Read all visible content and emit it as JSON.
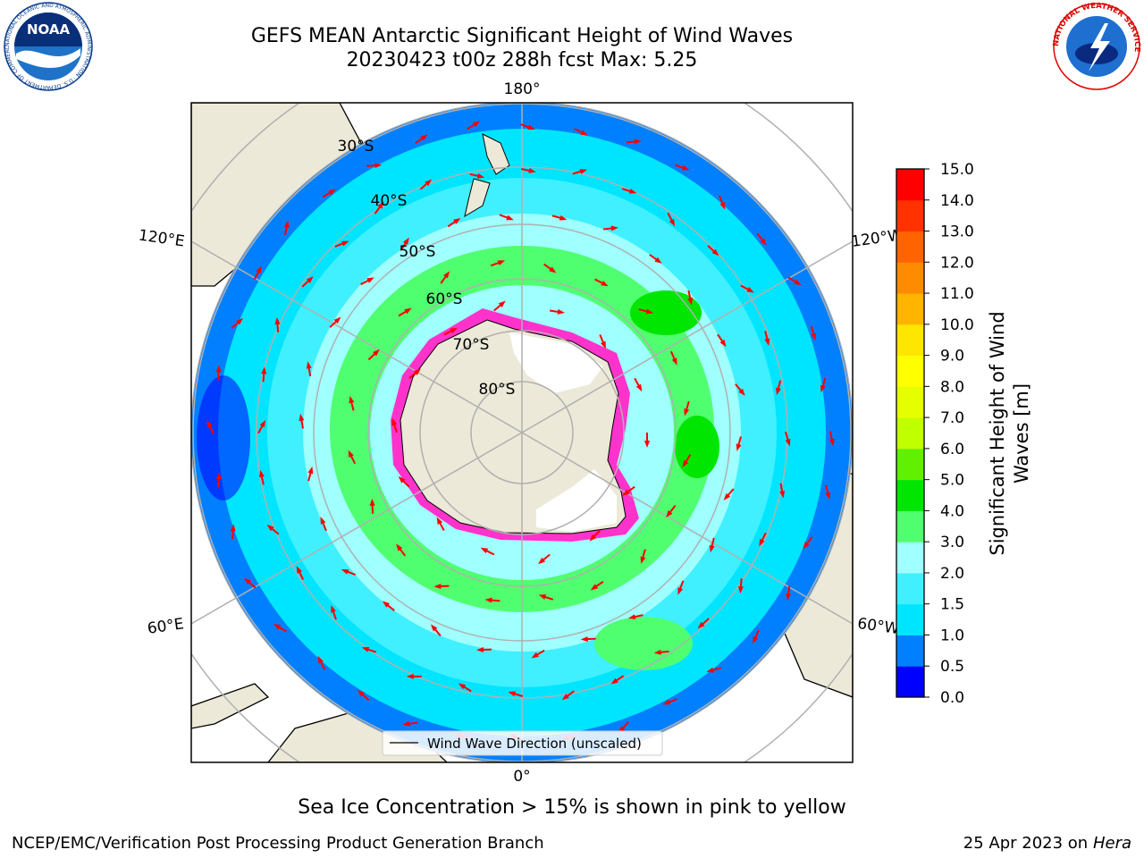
{
  "header": {
    "title_line1": "GEFS MEAN Antarctic Significant Height of Wind Waves",
    "title_line2": "20230423 t00z 288h fcst   Max: 5.25",
    "left_logo_text": "NOAA",
    "left_logo_ring_text": "NATIONAL OCEANIC AND ATMOSPHERIC ADMINISTRATION · U.S. DEPARTMENT OF COMMERCE",
    "right_logo_ring_text": "NATIONAL WEATHER SERVICE"
  },
  "map": {
    "projection": "south-polar-stereographic",
    "meridian_labels": {
      "top": "180°",
      "bottom": "0°",
      "upper_left": "120°E",
      "upper_right": "120°W",
      "lower_left": "60°E",
      "lower_right": "60°W"
    },
    "latitude_labels": [
      "30°S",
      "40°S",
      "50°S",
      "60°S",
      "70°S",
      "80°S"
    ],
    "legend_label": "Wind Wave Direction (unscaled)",
    "colors": {
      "land": "#ede9d8",
      "ice_shelf": "#ffffff",
      "arrow": "#ff0000",
      "sea_ice": "#ff33cc",
      "grid": "#b0b0b0"
    }
  },
  "colorbar": {
    "label_line1": "Significant Height of Wind",
    "label_line2": "Waves [m]",
    "ticks": [
      "0.0",
      "0.5",
      "1.0",
      "1.5",
      "2.0",
      "3.0",
      "4.0",
      "5.0",
      "6.0",
      "7.0",
      "8.0",
      "9.0",
      "10.0",
      "11.0",
      "12.0",
      "13.0",
      "14.0",
      "15.0"
    ],
    "colors": [
      "#0000ff",
      "#0080ff",
      "#00e5ff",
      "#40f0ff",
      "#a0ffff",
      "#50ff70",
      "#00e600",
      "#60f000",
      "#c0ff00",
      "#e6ff00",
      "#ffff00",
      "#ffe600",
      "#ffb400",
      "#ff8c00",
      "#ff6400",
      "#ff3200",
      "#ff0000"
    ]
  },
  "footer": {
    "note": "Sea Ice Concentration > 15% is shown in pink to yellow",
    "credit": "NCEP/EMC/Verification Post Processing Product Generation Branch",
    "date_prefix": "25 Apr 2023 on ",
    "machine": "Hera"
  }
}
